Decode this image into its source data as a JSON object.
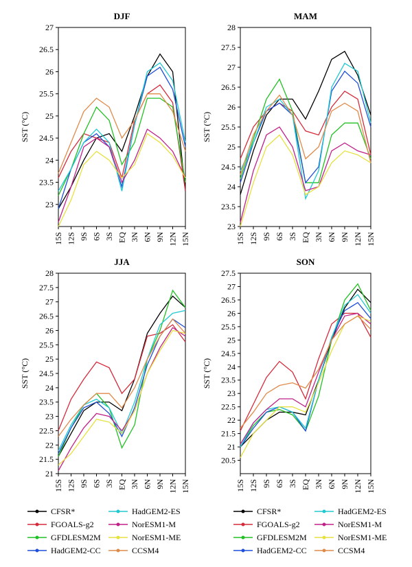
{
  "chart_data": [
    {
      "type": "line",
      "title": "DJF",
      "y_label": "SST (°C)",
      "categories": [
        "15S",
        "12S",
        "9S",
        "6S",
        "3S",
        "EQ",
        "3N",
        "6N",
        "9N",
        "12N",
        "15N"
      ],
      "ylim": [
        22.5,
        27
      ],
      "yticks": [
        23,
        23.5,
        24,
        24.5,
        25,
        25.5,
        26,
        26.5,
        27
      ],
      "series": [
        {
          "name": "CFSR*",
          "color": "#000000",
          "values": [
            22.9,
            23.4,
            24.0,
            24.5,
            24.6,
            24.2,
            25.0,
            25.9,
            26.4,
            26.0,
            23.3
          ]
        },
        {
          "name": "FGOALS-g2",
          "color": "#d42b3a",
          "values": [
            23.6,
            24.2,
            24.6,
            24.5,
            24.4,
            23.6,
            24.9,
            25.5,
            25.7,
            25.3,
            23.3
          ]
        },
        {
          "name": "GFDLESM2M",
          "color": "#22c022",
          "values": [
            23.2,
            23.8,
            24.6,
            25.2,
            24.9,
            23.9,
            24.4,
            25.4,
            25.4,
            25.2,
            23.5
          ]
        },
        {
          "name": "HadGEM2-CC",
          "color": "#1f4fd8",
          "values": [
            22.9,
            23.8,
            24.4,
            24.6,
            24.3,
            23.4,
            24.8,
            25.9,
            26.1,
            25.6,
            24.3
          ]
        },
        {
          "name": "HadGEM2-ES",
          "color": "#22c8d0",
          "values": [
            23.3,
            23.8,
            24.4,
            24.7,
            24.4,
            23.3,
            24.8,
            26.0,
            26.2,
            25.8,
            24.4
          ]
        },
        {
          "name": "NorESM1-M",
          "color": "#c0208a",
          "values": [
            22.6,
            23.4,
            24.3,
            24.5,
            24.3,
            23.5,
            24.0,
            24.7,
            24.5,
            24.2,
            23.6
          ]
        },
        {
          "name": "NorESM1-ME",
          "color": "#e6e040",
          "values": [
            22.5,
            23.1,
            23.9,
            24.2,
            24.0,
            23.6,
            23.9,
            24.6,
            24.4,
            24.1,
            23.6
          ]
        },
        {
          "name": "CCSM4",
          "color": "#e08a4a",
          "values": [
            23.7,
            24.4,
            25.1,
            25.4,
            25.2,
            24.5,
            24.9,
            25.5,
            25.5,
            25.1,
            24.2
          ]
        }
      ]
    },
    {
      "type": "line",
      "title": "MAM",
      "y_label": "SST (°C)",
      "categories": [
        "15S",
        "12S",
        "9S",
        "6S",
        "3S",
        "EQ",
        "3N",
        "6N",
        "9N",
        "12N",
        "15N"
      ],
      "ylim": [
        23,
        28
      ],
      "yticks": [
        23,
        23.5,
        24,
        24.5,
        25,
        25.5,
        26,
        26.5,
        27,
        27.5,
        28
      ],
      "series": [
        {
          "name": "CFSR*",
          "color": "#000000",
          "values": [
            23.8,
            24.9,
            25.8,
            26.2,
            26.2,
            25.7,
            26.4,
            27.2,
            27.4,
            26.8,
            25.8
          ]
        },
        {
          "name": "FGOALS-g2",
          "color": "#d42b3a",
          "values": [
            24.7,
            25.5,
            25.9,
            26.1,
            25.9,
            25.4,
            25.3,
            26.0,
            26.4,
            26.2,
            24.8
          ]
        },
        {
          "name": "GFDLESM2M",
          "color": "#22c022",
          "values": [
            24.2,
            25.2,
            26.2,
            26.7,
            25.9,
            24.1,
            24.1,
            25.3,
            25.6,
            25.6,
            24.7
          ]
        },
        {
          "name": "HadGEM2-CC",
          "color": "#1f4fd8",
          "values": [
            24.1,
            25.1,
            25.9,
            26.1,
            25.8,
            24.1,
            24.5,
            26.4,
            26.9,
            26.6,
            25.5
          ]
        },
        {
          "name": "HadGEM2-ES",
          "color": "#22c8d0",
          "values": [
            24.4,
            25.1,
            26.0,
            26.2,
            25.8,
            23.7,
            24.4,
            26.5,
            27.1,
            26.9,
            25.6
          ]
        },
        {
          "name": "NorESM1-M",
          "color": "#c0208a",
          "values": [
            23.1,
            24.4,
            25.3,
            25.5,
            25.0,
            23.9,
            24.0,
            24.9,
            25.1,
            24.9,
            24.8
          ]
        },
        {
          "name": "NorESM1-ME",
          "color": "#e6e040",
          "values": [
            23.0,
            24.1,
            25.0,
            25.3,
            24.8,
            23.8,
            24.0,
            24.6,
            24.9,
            24.8,
            24.6
          ]
        },
        {
          "name": "CCSM4",
          "color": "#e08a4a",
          "values": [
            24.3,
            25.3,
            25.9,
            26.3,
            25.8,
            24.7,
            25.0,
            25.9,
            26.1,
            25.9,
            24.6
          ]
        }
      ]
    },
    {
      "type": "line",
      "title": "JJA",
      "y_label": "SST (°C)",
      "categories": [
        "15S",
        "12S",
        "9S",
        "6S",
        "3S",
        "EQ",
        "3N",
        "6N",
        "9N",
        "12N",
        "15N"
      ],
      "ylim": [
        21,
        28
      ],
      "yticks": [
        21,
        21.5,
        22,
        22.5,
        23,
        23.5,
        24,
        24.5,
        25,
        25.5,
        26,
        26.5,
        27,
        27.5,
        28
      ],
      "series": [
        {
          "name": "CFSR*",
          "color": "#000000",
          "values": [
            21.6,
            22.4,
            23.2,
            23.5,
            23.5,
            23.2,
            24.3,
            25.9,
            26.6,
            27.2,
            26.8
          ]
        },
        {
          "name": "FGOALS-g2",
          "color": "#d42b3a",
          "values": [
            22.5,
            23.6,
            24.3,
            24.9,
            24.7,
            23.8,
            24.3,
            25.8,
            25.9,
            26.2,
            25.6
          ]
        },
        {
          "name": "GFDLESM2M",
          "color": "#22c022",
          "values": [
            21.6,
            22.6,
            23.4,
            23.8,
            23.3,
            21.9,
            22.7,
            25.0,
            26.0,
            27.4,
            26.8
          ]
        },
        {
          "name": "HadGEM2-CC",
          "color": "#1f4fd8",
          "values": [
            21.7,
            22.6,
            23.3,
            23.5,
            23.1,
            22.3,
            23.3,
            24.8,
            25.8,
            26.4,
            26.1
          ]
        },
        {
          "name": "HadGEM2-ES",
          "color": "#22c8d0",
          "values": [
            21.8,
            22.7,
            23.4,
            23.6,
            23.3,
            22.4,
            23.5,
            25.0,
            26.2,
            26.6,
            26.7
          ]
        },
        {
          "name": "NorESM1-M",
          "color": "#c0208a",
          "values": [
            21.1,
            21.9,
            22.6,
            23.1,
            23.0,
            22.5,
            23.2,
            24.5,
            25.4,
            26.1,
            25.8
          ]
        },
        {
          "name": "NorESM1-ME",
          "color": "#e6e040",
          "values": [
            21.3,
            21.7,
            22.3,
            22.9,
            22.8,
            22.4,
            23.2,
            24.5,
            25.3,
            26.0,
            25.9
          ]
        },
        {
          "name": "CCSM4",
          "color": "#e08a4a",
          "values": [
            22.3,
            22.9,
            23.4,
            23.8,
            23.8,
            23.3,
            24.0,
            25.0,
            25.8,
            26.4,
            25.9
          ]
        }
      ]
    },
    {
      "type": "line",
      "title": "SON",
      "y_label": "SST (°C)",
      "categories": [
        "15S",
        "12S",
        "9S",
        "6S",
        "3S",
        "EQ",
        "3N",
        "6N",
        "9N",
        "12N",
        "15N"
      ],
      "ylim": [
        20,
        27.5
      ],
      "yticks": [
        20.5,
        21,
        21.5,
        22,
        22.5,
        23,
        23.5,
        24,
        24.5,
        25,
        25.5,
        26,
        26.5,
        27,
        27.5
      ],
      "series": [
        {
          "name": "CFSR*",
          "color": "#000000",
          "values": [
            21.0,
            21.5,
            22.0,
            22.3,
            22.3,
            22.2,
            23.5,
            25.0,
            26.2,
            26.9,
            26.4
          ]
        },
        {
          "name": "FGOALS-g2",
          "color": "#d42b3a",
          "values": [
            21.6,
            22.6,
            23.6,
            24.2,
            23.8,
            22.8,
            24.3,
            25.6,
            26.0,
            26.0,
            25.1
          ]
        },
        {
          "name": "GFDLESM2M",
          "color": "#22c022",
          "values": [
            21.0,
            21.8,
            22.3,
            22.4,
            22.2,
            21.6,
            22.9,
            25.0,
            26.5,
            27.1,
            26.1
          ]
        },
        {
          "name": "HadGEM2-CC",
          "color": "#1f4fd8",
          "values": [
            21.0,
            21.7,
            22.3,
            22.5,
            22.3,
            21.6,
            23.5,
            25.1,
            26.1,
            26.4,
            25.8
          ]
        },
        {
          "name": "HadGEM2-ES",
          "color": "#22c8d0",
          "values": [
            21.0,
            21.9,
            22.4,
            22.5,
            22.3,
            21.7,
            23.5,
            25.1,
            26.3,
            26.7,
            26.0
          ]
        },
        {
          "name": "NorESM1-M",
          "color": "#c0208a",
          "values": [
            21.1,
            21.9,
            22.4,
            22.8,
            22.8,
            22.5,
            23.8,
            25.0,
            25.9,
            26.0,
            25.6
          ]
        },
        {
          "name": "NorESM1-ME",
          "color": "#e6e040",
          "values": [
            20.6,
            21.5,
            22.0,
            22.5,
            22.5,
            22.3,
            23.4,
            24.6,
            25.6,
            25.9,
            25.7
          ]
        },
        {
          "name": "CCSM4",
          "color": "#e08a4a",
          "values": [
            21.7,
            22.3,
            23.0,
            23.3,
            23.4,
            23.2,
            23.9,
            25.0,
            25.6,
            25.9,
            25.4
          ]
        }
      ]
    }
  ]
}
